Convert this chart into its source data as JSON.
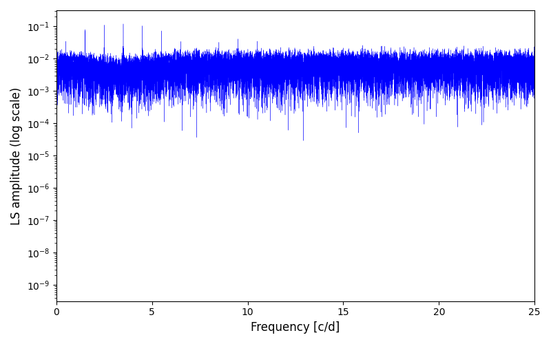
{
  "title": "",
  "xlabel": "Frequency [c/d]",
  "ylabel": "LS amplitude (log scale)",
  "xlim": [
    0,
    25
  ],
  "ylim_log": [
    -9.5,
    -0.5
  ],
  "line_color": "#0000ff",
  "figsize": [
    8.0,
    5.0
  ],
  "dpi": 100,
  "n_freq": 80000,
  "freq_max": 25.0,
  "background_color": "#ffffff",
  "xticks": [
    0,
    5,
    10,
    15,
    20,
    25
  ]
}
